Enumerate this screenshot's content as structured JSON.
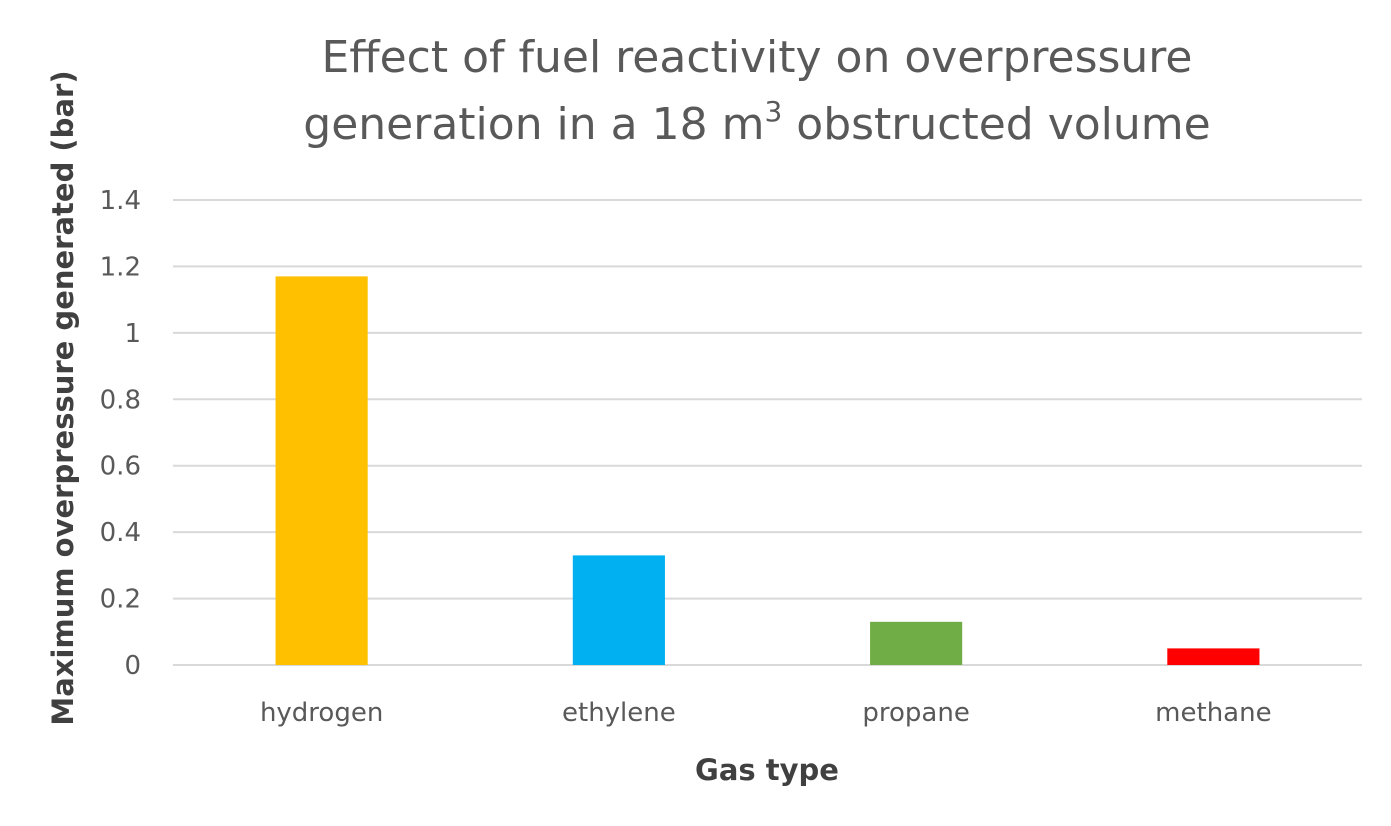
{
  "chart_data": {
    "type": "bar",
    "title_line1": "Effect of fuel reactivity on overpressure",
    "title_line2_pre": "generation in a 18 m",
    "title_line2_sup": "3",
    "title_line2_post": " obstructed volume",
    "xlabel": "Gas type",
    "ylabel": "Maximum overpressure generated (bar)",
    "categories": [
      "hydrogen",
      "ethylene",
      "propane",
      "methane"
    ],
    "values": [
      1.17,
      0.33,
      0.13,
      0.05
    ],
    "colors": [
      "#FFC000",
      "#00B0F0",
      "#70AD47",
      "#FF0000"
    ],
    "ylim": [
      0,
      1.4
    ],
    "yticks": [
      0,
      0.2,
      0.4,
      0.6,
      0.8,
      1,
      1.2,
      1.4
    ],
    "ytick_labels": [
      "0",
      "0.2",
      "0.4",
      "0.6",
      "0.8",
      "1",
      "1.2",
      "1.4"
    ],
    "grid": true,
    "legend": "none"
  }
}
